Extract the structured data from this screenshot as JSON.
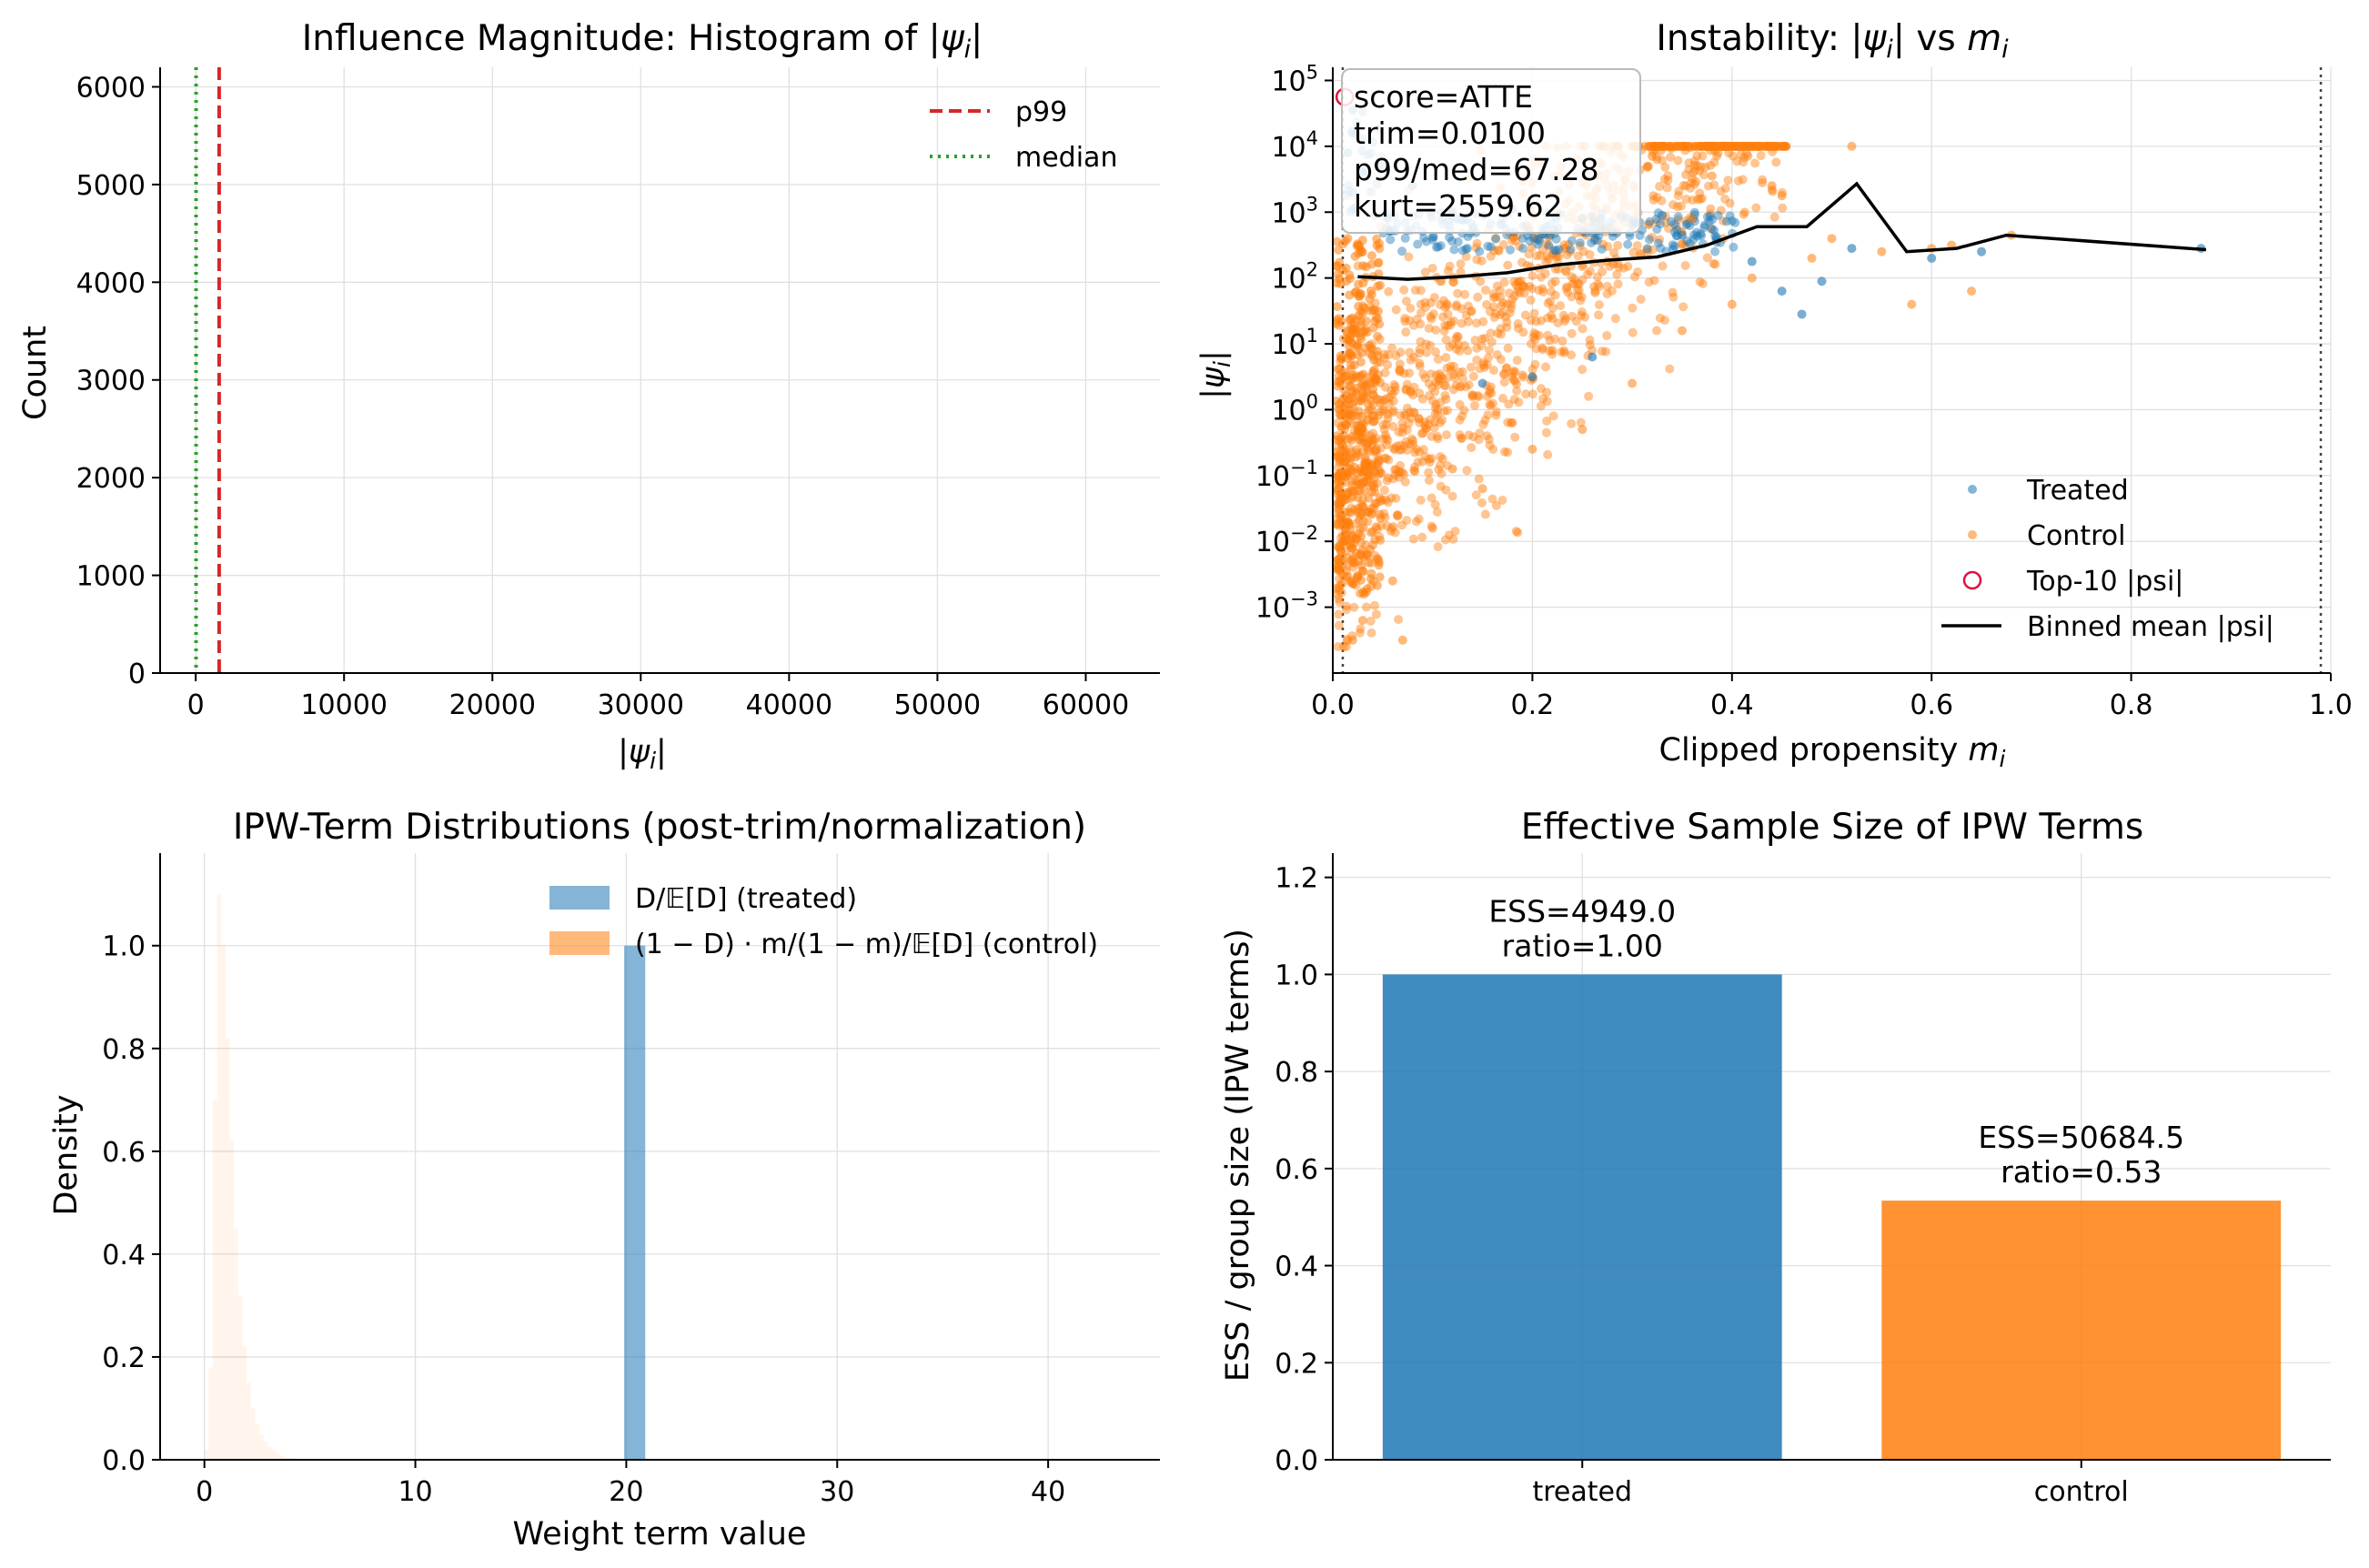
{
  "chart_data": [
    {
      "type": "histogram",
      "title_prefix": "Influence Magnitude: Histogram of |",
      "title_sym": "ψ",
      "title_sub": "i",
      "title_suffix": "|",
      "xlabel": "|ψi|",
      "ylabel": "Count",
      "xlim": [
        -2400,
        65000
      ],
      "ylim": [
        0,
        6200
      ],
      "xticks": [
        0,
        10000,
        20000,
        30000,
        40000,
        50000,
        60000
      ],
      "xtick_labels": [
        "0",
        "10000",
        "20000",
        "30000",
        "40000",
        "50000",
        "60000"
      ],
      "yticks": [
        0,
        1000,
        2000,
        3000,
        4000,
        5000,
        6000
      ],
      "ytick_labels": [
        "0",
        "1000",
        "2000",
        "3000",
        "4000",
        "5000",
        "6000"
      ],
      "vlines": [
        {
          "name": "p99",
          "x": 1580,
          "color": "#d62728",
          "style": "dashed"
        },
        {
          "name": "median",
          "x": 24,
          "color": "#2ca02c",
          "style": "dotted"
        }
      ],
      "legend": [
        "p99",
        "median"
      ],
      "legend_loc": "upper right",
      "grid": true
    },
    {
      "type": "scatter",
      "title_prefix": "Instability: |",
      "title_sym": "ψ",
      "title_sub": "i",
      "title_mid": "| vs ",
      "title_m": "m",
      "title_m_sub": "i",
      "xlabel": "Clipped propensity m",
      "xlabel_sub": "i",
      "ylabel": "|ψi|",
      "yscale": "log",
      "xlim": [
        0.0,
        1.0
      ],
      "ylim_log10": [
        -4.0,
        5.2
      ],
      "xticks": [
        0.0,
        0.2,
        0.4,
        0.6,
        0.8,
        1.0
      ],
      "xtick_labels": [
        "0.0",
        "0.2",
        "0.4",
        "0.6",
        "0.8",
        "1.0"
      ],
      "ytick_exps": [
        -3,
        -2,
        -1,
        0,
        1,
        2,
        3,
        4,
        5
      ],
      "ytick_base": "10",
      "ytick_sups": [
        "−3",
        "−2",
        "−1",
        "0",
        "1",
        "2",
        "3",
        "4",
        "5"
      ],
      "trim_lines": [
        0.01,
        0.99
      ],
      "annotation": [
        "score=ATTE",
        "trim=0.0100",
        "p99/med=67.28",
        "kurt=2559.62"
      ],
      "series": [
        {
          "name": "Treated",
          "color": "#1f77b4",
          "points": [
            [
              0.02,
              4.55
            ],
            [
              0.02,
              4.2
            ],
            [
              0.015,
              3.9
            ],
            [
              0.03,
              3.6
            ],
            [
              0.02,
              3.3
            ],
            [
              0.05,
              3.7
            ],
            [
              0.08,
              3.4
            ],
            [
              0.12,
              3.0
            ],
            [
              0.18,
              3.05
            ],
            [
              0.25,
              2.9
            ],
            [
              0.3,
              2.8
            ],
            [
              0.35,
              2.65
            ],
            [
              0.42,
              2.25
            ],
            [
              0.45,
              1.8
            ],
            [
              0.47,
              1.45
            ],
            [
              0.49,
              1.95
            ],
            [
              0.52,
              2.45
            ],
            [
              0.6,
              2.3
            ],
            [
              0.65,
              2.4
            ],
            [
              0.87,
              2.45
            ],
            [
              0.2,
              0.5
            ],
            [
              0.26,
              0.8
            ],
            [
              0.15,
              0.4
            ],
            [
              0.28,
              2.7
            ],
            [
              0.33,
              2.95
            ]
          ]
        },
        {
          "name": "Control",
          "color": "#ff7f0e",
          "points": [
            [
              0.38,
              3.55
            ],
            [
              0.32,
              3.85
            ],
            [
              0.45,
              3.25
            ],
            [
              0.52,
              4.0
            ],
            [
              0.55,
              2.4
            ],
            [
              0.6,
              2.45
            ],
            [
              0.64,
              1.8
            ],
            [
              0.68,
              2.65
            ],
            [
              0.5,
              2.6
            ],
            [
              0.4,
              1.6
            ],
            [
              0.35,
              1.2
            ],
            [
              0.3,
              0.4
            ],
            [
              0.25,
              -0.3
            ],
            [
              0.2,
              -0.6
            ],
            [
              0.15,
              -1.2
            ],
            [
              0.1,
              -1.8
            ],
            [
              0.06,
              -2.6
            ],
            [
              0.03,
              -3.2
            ],
            [
              0.02,
              -3.5
            ],
            [
              0.07,
              -3.5
            ],
            [
              0.22,
              0.9
            ],
            [
              0.42,
              2.0
            ],
            [
              0.48,
              2.3
            ],
            [
              0.58,
              1.6
            ],
            [
              0.62,
              2.5
            ],
            [
              0.36,
              2.9
            ],
            [
              0.28,
              3.2
            ],
            [
              0.44,
              3.4
            ],
            [
              0.12,
              -0.9
            ],
            [
              0.18,
              -0.2
            ]
          ]
        }
      ],
      "top10": {
        "name": "Top-10 |psi|",
        "color": "#dc143c",
        "points": [
          [
            0.012,
            4.75
          ]
        ]
      },
      "binned_mean": {
        "name": "Binned mean |psi|",
        "color": "#000000",
        "x": [
          0.025,
          0.075,
          0.125,
          0.175,
          0.225,
          0.275,
          0.325,
          0.375,
          0.425,
          0.475,
          0.525,
          0.575,
          0.625,
          0.675,
          0.875
        ],
        "y_log10": [
          2.02,
          1.98,
          2.02,
          2.08,
          2.2,
          2.27,
          2.32,
          2.5,
          2.78,
          2.78,
          3.43,
          2.4,
          2.45,
          2.65,
          2.43
        ]
      },
      "legend": [
        "Treated",
        "Control",
        "Top-10 |psi|",
        "Binned mean |psi|"
      ],
      "legend_loc": "lower right",
      "grid": true
    },
    {
      "type": "histogram",
      "title": "IPW-Term Distributions (post-trim/normalization)",
      "xlabel": "Weight term value",
      "ylabel": "Density",
      "xlim": [
        -2.1,
        45.3
      ],
      "ylim": [
        0,
        1.18
      ],
      "xticks": [
        0,
        10,
        20,
        30,
        40
      ],
      "xtick_labels": [
        "0",
        "10",
        "20",
        "30",
        "40"
      ],
      "yticks": [
        0.0,
        0.2,
        0.4,
        0.6,
        0.8,
        1.0
      ],
      "ytick_labels": [
        "0.0",
        "0.2",
        "0.4",
        "0.6",
        "0.8",
        "1.0"
      ],
      "series": [
        {
          "name": "treated",
          "legend_label": "D/𝔼[D] (treated)",
          "color": "#1f77b4",
          "bars": [
            {
              "x0": 19.9,
              "x1": 20.9,
              "density": 1.0
            }
          ]
        },
        {
          "name": "control",
          "legend_label": "(1 − D) · m/(1 − m)/𝔼[D] (control)",
          "color": "#ff7f0e",
          "bars": [
            {
              "x0": 0.0,
              "x1": 0.2,
              "density": 0.02
            },
            {
              "x0": 0.2,
              "x1": 0.4,
              "density": 0.18
            },
            {
              "x0": 0.4,
              "x1": 0.6,
              "density": 0.7
            },
            {
              "x0": 0.6,
              "x1": 0.8,
              "density": 1.1
            },
            {
              "x0": 0.8,
              "x1": 1.0,
              "density": 1.0
            },
            {
              "x0": 1.0,
              "x1": 1.2,
              "density": 0.82
            },
            {
              "x0": 1.2,
              "x1": 1.4,
              "density": 0.62
            },
            {
              "x0": 1.4,
              "x1": 1.6,
              "density": 0.45
            },
            {
              "x0": 1.6,
              "x1": 1.8,
              "density": 0.32
            },
            {
              "x0": 1.8,
              "x1": 2.0,
              "density": 0.22
            },
            {
              "x0": 2.0,
              "x1": 2.2,
              "density": 0.15
            },
            {
              "x0": 2.2,
              "x1": 2.4,
              "density": 0.1
            },
            {
              "x0": 2.4,
              "x1": 2.6,
              "density": 0.07
            },
            {
              "x0": 2.6,
              "x1": 2.8,
              "density": 0.05
            },
            {
              "x0": 2.8,
              "x1": 3.0,
              "density": 0.035
            },
            {
              "x0": 3.0,
              "x1": 3.2,
              "density": 0.025
            },
            {
              "x0": 3.2,
              "x1": 3.4,
              "density": 0.018
            },
            {
              "x0": 3.4,
              "x1": 3.6,
              "density": 0.012
            },
            {
              "x0": 3.6,
              "x1": 3.8,
              "density": 0.008
            },
            {
              "x0": 3.8,
              "x1": 4.2,
              "density": 0.004
            }
          ]
        }
      ],
      "legend_loc": "upper right",
      "grid": true
    },
    {
      "type": "bar",
      "title": "Effective Sample Size of IPW Terms",
      "ylabel": "ESS / group size (IPW terms)",
      "categories": [
        "treated",
        "control"
      ],
      "values": [
        1.0,
        0.534
      ],
      "colors": [
        "#1f77b4",
        "#ff7f0e"
      ],
      "bar_labels": [
        [
          "ESS=4949.0",
          "ratio=1.00"
        ],
        [
          "ESS=50684.5",
          "ratio=0.53"
        ]
      ],
      "ylim": [
        0,
        1.25
      ],
      "yticks": [
        0.0,
        0.2,
        0.4,
        0.6,
        0.8,
        1.0,
        1.2
      ],
      "ytick_labels": [
        "0.0",
        "0.2",
        "0.4",
        "0.6",
        "0.8",
        "1.0",
        "1.2"
      ],
      "grid": true
    }
  ]
}
